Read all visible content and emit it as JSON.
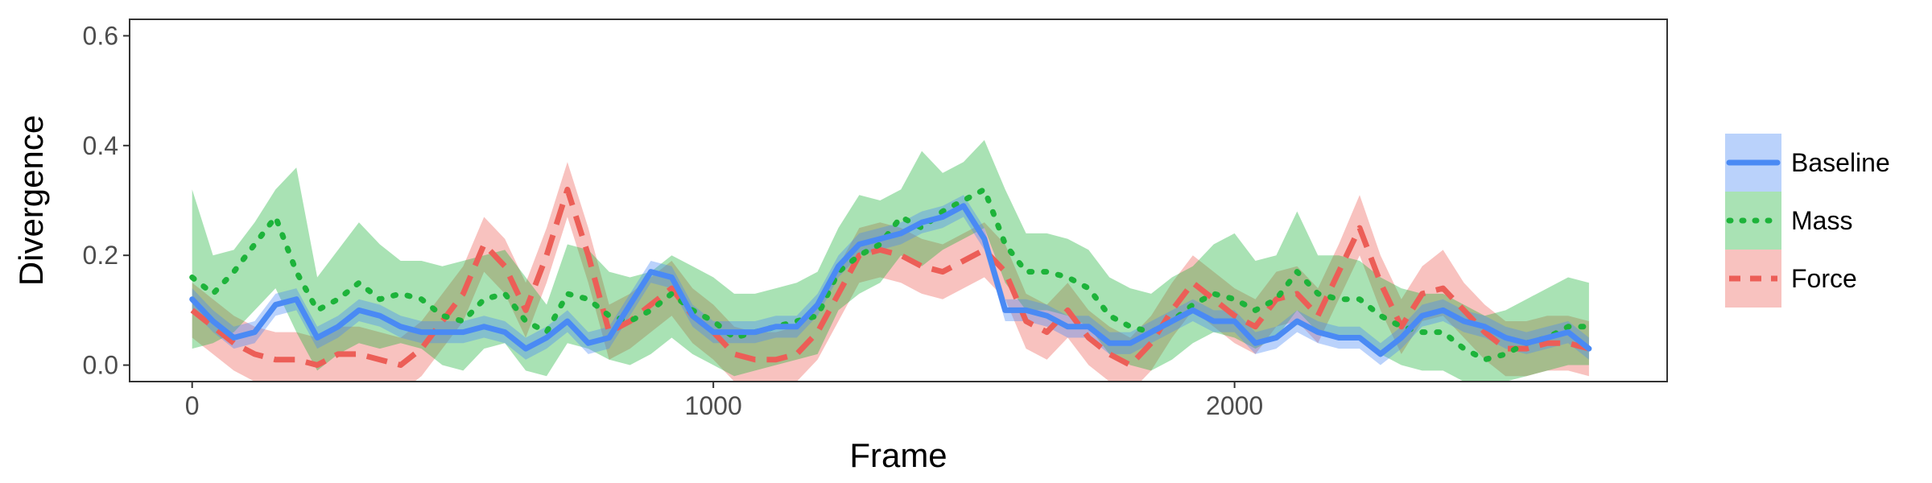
{
  "chart_data": {
    "type": "line",
    "title": "",
    "xlabel": "Frame",
    "ylabel": "Divergence",
    "xlim": [
      -120,
      2830
    ],
    "ylim": [
      -0.03,
      0.63
    ],
    "x_ticks": [
      0,
      1000,
      2000
    ],
    "x_tick_labels": [
      "0",
      "1000",
      "2000"
    ],
    "y_ticks": [
      0.0,
      0.2,
      0.4,
      0.6
    ],
    "y_tick_labels": [
      "0.0",
      "0.2",
      "0.4",
      "0.6"
    ],
    "grid": false,
    "legend_position": "right",
    "series": [
      {
        "name": "Baseline",
        "color": "#4a8af4",
        "line_style": "solid",
        "x": [
          0,
          40,
          80,
          120,
          160,
          200,
          240,
          280,
          320,
          360,
          400,
          440,
          480,
          520,
          560,
          600,
          640,
          680,
          720,
          760,
          800,
          840,
          880,
          920,
          960,
          1000,
          1040,
          1080,
          1120,
          1160,
          1200,
          1240,
          1280,
          1320,
          1360,
          1400,
          1440,
          1480,
          1520,
          1560,
          1600,
          1640,
          1680,
          1720,
          1760,
          1800,
          1840,
          1880,
          1920,
          1960,
          2000,
          2040,
          2080,
          2120,
          2160,
          2200,
          2240,
          2280,
          2320,
          2360,
          2400,
          2440,
          2480,
          2520,
          2560,
          2600,
          2640,
          2680
        ],
        "y": [
          0.12,
          0.08,
          0.05,
          0.06,
          0.11,
          0.12,
          0.05,
          0.07,
          0.1,
          0.09,
          0.07,
          0.06,
          0.06,
          0.06,
          0.07,
          0.06,
          0.03,
          0.05,
          0.08,
          0.04,
          0.05,
          0.11,
          0.17,
          0.16,
          0.09,
          0.06,
          0.06,
          0.06,
          0.07,
          0.07,
          0.11,
          0.18,
          0.22,
          0.23,
          0.24,
          0.26,
          0.27,
          0.29,
          0.23,
          0.1,
          0.1,
          0.09,
          0.07,
          0.07,
          0.04,
          0.04,
          0.06,
          0.08,
          0.1,
          0.08,
          0.08,
          0.04,
          0.05,
          0.08,
          0.06,
          0.05,
          0.05,
          0.02,
          0.05,
          0.09,
          0.1,
          0.08,
          0.07,
          0.05,
          0.04,
          0.05,
          0.06,
          0.03
        ],
        "lower": [
          0.1,
          0.06,
          0.03,
          0.04,
          0.09,
          0.1,
          0.03,
          0.05,
          0.08,
          0.07,
          0.05,
          0.04,
          0.04,
          0.04,
          0.05,
          0.04,
          0.01,
          0.03,
          0.06,
          0.02,
          0.03,
          0.09,
          0.15,
          0.14,
          0.07,
          0.04,
          0.04,
          0.04,
          0.05,
          0.05,
          0.09,
          0.16,
          0.2,
          0.21,
          0.22,
          0.24,
          0.25,
          0.27,
          0.21,
          0.08,
          0.08,
          0.07,
          0.05,
          0.05,
          0.02,
          0.02,
          0.04,
          0.06,
          0.08,
          0.06,
          0.06,
          0.02,
          0.03,
          0.06,
          0.04,
          0.03,
          0.03,
          0.0,
          0.03,
          0.07,
          0.08,
          0.06,
          0.05,
          0.03,
          0.02,
          0.03,
          0.04,
          0.01
        ],
        "upper": [
          0.14,
          0.1,
          0.07,
          0.08,
          0.13,
          0.14,
          0.07,
          0.09,
          0.12,
          0.11,
          0.09,
          0.08,
          0.08,
          0.08,
          0.09,
          0.08,
          0.05,
          0.07,
          0.1,
          0.06,
          0.07,
          0.13,
          0.19,
          0.18,
          0.11,
          0.08,
          0.08,
          0.08,
          0.09,
          0.09,
          0.13,
          0.2,
          0.24,
          0.25,
          0.26,
          0.28,
          0.29,
          0.31,
          0.25,
          0.12,
          0.12,
          0.11,
          0.09,
          0.09,
          0.06,
          0.06,
          0.08,
          0.1,
          0.12,
          0.1,
          0.1,
          0.06,
          0.07,
          0.1,
          0.08,
          0.07,
          0.07,
          0.04,
          0.07,
          0.11,
          0.12,
          0.1,
          0.09,
          0.07,
          0.06,
          0.07,
          0.08,
          0.05
        ]
      },
      {
        "name": "Mass",
        "color": "#1db33a",
        "line_style": "dotted",
        "x": [
          0,
          40,
          80,
          120,
          160,
          200,
          240,
          280,
          320,
          360,
          400,
          440,
          480,
          520,
          560,
          600,
          640,
          680,
          720,
          760,
          800,
          840,
          880,
          920,
          960,
          1000,
          1040,
          1080,
          1120,
          1160,
          1200,
          1240,
          1280,
          1320,
          1360,
          1400,
          1440,
          1480,
          1520,
          1560,
          1600,
          1640,
          1680,
          1720,
          1760,
          1800,
          1840,
          1880,
          1920,
          1960,
          2000,
          2040,
          2080,
          2120,
          2160,
          2200,
          2240,
          2280,
          2320,
          2360,
          2400,
          2440,
          2480,
          2520,
          2560,
          2600,
          2640,
          2680
        ],
        "y": [
          0.16,
          0.13,
          0.17,
          0.22,
          0.27,
          0.17,
          0.1,
          0.12,
          0.15,
          0.12,
          0.13,
          0.12,
          0.09,
          0.08,
          0.12,
          0.13,
          0.08,
          0.06,
          0.13,
          0.12,
          0.09,
          0.08,
          0.1,
          0.13,
          0.1,
          0.08,
          0.05,
          0.06,
          0.07,
          0.08,
          0.09,
          0.17,
          0.2,
          0.22,
          0.27,
          0.25,
          0.28,
          0.3,
          0.32,
          0.22,
          0.17,
          0.17,
          0.16,
          0.14,
          0.09,
          0.07,
          0.06,
          0.08,
          0.11,
          0.13,
          0.12,
          0.1,
          0.12,
          0.17,
          0.13,
          0.12,
          0.12,
          0.09,
          0.07,
          0.06,
          0.06,
          0.03,
          0.01,
          0.02,
          0.04,
          0.05,
          0.07,
          0.07
        ],
        "lower": [
          0.03,
          0.04,
          0.06,
          0.1,
          0.14,
          0.06,
          -0.01,
          0.02,
          0.04,
          0.03,
          0.04,
          0.03,
          0.0,
          -0.01,
          0.03,
          0.04,
          -0.01,
          -0.02,
          0.04,
          0.03,
          0.01,
          0.0,
          0.02,
          0.05,
          0.02,
          0.0,
          -0.02,
          -0.01,
          0.0,
          0.01,
          0.02,
          0.1,
          0.13,
          0.15,
          0.2,
          0.18,
          0.21,
          0.23,
          0.25,
          0.15,
          0.1,
          0.1,
          0.09,
          0.07,
          0.02,
          0.0,
          -0.01,
          0.01,
          0.04,
          0.06,
          0.05,
          0.03,
          0.05,
          0.1,
          0.06,
          0.05,
          0.05,
          0.02,
          0.0,
          -0.01,
          -0.01,
          -0.03,
          -0.04,
          -0.03,
          -0.02,
          -0.01,
          0.0,
          0.0
        ],
        "upper": [
          0.32,
          0.2,
          0.21,
          0.26,
          0.32,
          0.36,
          0.16,
          0.21,
          0.26,
          0.22,
          0.19,
          0.19,
          0.18,
          0.19,
          0.2,
          0.21,
          0.16,
          0.11,
          0.22,
          0.21,
          0.17,
          0.16,
          0.17,
          0.2,
          0.18,
          0.16,
          0.13,
          0.13,
          0.14,
          0.15,
          0.17,
          0.25,
          0.31,
          0.3,
          0.32,
          0.39,
          0.35,
          0.37,
          0.41,
          0.32,
          0.24,
          0.24,
          0.23,
          0.21,
          0.16,
          0.14,
          0.13,
          0.16,
          0.18,
          0.22,
          0.24,
          0.19,
          0.2,
          0.28,
          0.2,
          0.2,
          0.19,
          0.16,
          0.14,
          0.13,
          0.13,
          0.11,
          0.09,
          0.1,
          0.12,
          0.14,
          0.16,
          0.15
        ]
      },
      {
        "name": "Force",
        "color": "#ec5e57",
        "line_style": "dashed",
        "x": [
          0,
          40,
          80,
          120,
          160,
          200,
          240,
          280,
          320,
          360,
          400,
          440,
          480,
          520,
          560,
          600,
          640,
          680,
          720,
          760,
          800,
          840,
          880,
          920,
          960,
          1000,
          1040,
          1080,
          1120,
          1160,
          1200,
          1240,
          1280,
          1320,
          1360,
          1400,
          1440,
          1480,
          1520,
          1560,
          1600,
          1640,
          1680,
          1720,
          1760,
          1800,
          1840,
          1880,
          1920,
          1960,
          2000,
          2040,
          2080,
          2120,
          2160,
          2200,
          2240,
          2280,
          2320,
          2360,
          2400,
          2440,
          2480,
          2520,
          2560,
          2600,
          2640,
          2680
        ],
        "y": [
          0.1,
          0.07,
          0.04,
          0.02,
          0.01,
          0.01,
          0.0,
          0.02,
          0.02,
          0.01,
          0.0,
          0.03,
          0.08,
          0.13,
          0.22,
          0.18,
          0.1,
          0.2,
          0.32,
          0.2,
          0.06,
          0.08,
          0.11,
          0.14,
          0.09,
          0.06,
          0.02,
          0.01,
          0.01,
          0.02,
          0.06,
          0.13,
          0.2,
          0.21,
          0.2,
          0.18,
          0.17,
          0.19,
          0.21,
          0.17,
          0.08,
          0.06,
          0.1,
          0.05,
          0.02,
          0.0,
          0.04,
          0.1,
          0.15,
          0.12,
          0.09,
          0.07,
          0.12,
          0.13,
          0.09,
          0.17,
          0.25,
          0.15,
          0.07,
          0.13,
          0.14,
          0.1,
          0.06,
          0.03,
          0.03,
          0.04,
          0.04,
          0.03
        ],
        "lower": [
          0.05,
          0.02,
          -0.01,
          -0.03,
          -0.04,
          -0.04,
          -0.05,
          -0.03,
          -0.03,
          -0.04,
          -0.05,
          -0.02,
          0.03,
          0.08,
          0.17,
          0.13,
          0.05,
          0.15,
          0.27,
          0.15,
          0.01,
          0.03,
          0.06,
          0.09,
          0.04,
          0.01,
          -0.03,
          -0.04,
          -0.04,
          -0.03,
          0.01,
          0.08,
          0.15,
          0.16,
          0.15,
          0.13,
          0.12,
          0.14,
          0.16,
          0.12,
          0.03,
          0.01,
          0.05,
          0.0,
          -0.03,
          -0.05,
          -0.01,
          0.05,
          0.1,
          0.07,
          0.04,
          0.02,
          0.07,
          0.08,
          0.04,
          0.12,
          0.2,
          0.1,
          0.02,
          0.08,
          0.09,
          0.05,
          0.01,
          -0.02,
          -0.02,
          -0.01,
          -0.01,
          -0.02
        ],
        "upper": [
          0.15,
          0.12,
          0.09,
          0.07,
          0.06,
          0.06,
          0.05,
          0.07,
          0.07,
          0.06,
          0.05,
          0.08,
          0.13,
          0.18,
          0.27,
          0.23,
          0.15,
          0.25,
          0.37,
          0.25,
          0.11,
          0.13,
          0.16,
          0.19,
          0.14,
          0.11,
          0.07,
          0.06,
          0.06,
          0.07,
          0.11,
          0.18,
          0.25,
          0.26,
          0.25,
          0.23,
          0.22,
          0.24,
          0.26,
          0.22,
          0.13,
          0.11,
          0.15,
          0.1,
          0.07,
          0.05,
          0.09,
          0.15,
          0.2,
          0.17,
          0.14,
          0.12,
          0.17,
          0.18,
          0.14,
          0.22,
          0.31,
          0.2,
          0.12,
          0.18,
          0.21,
          0.15,
          0.11,
          0.08,
          0.08,
          0.09,
          0.09,
          0.08
        ]
      }
    ]
  }
}
